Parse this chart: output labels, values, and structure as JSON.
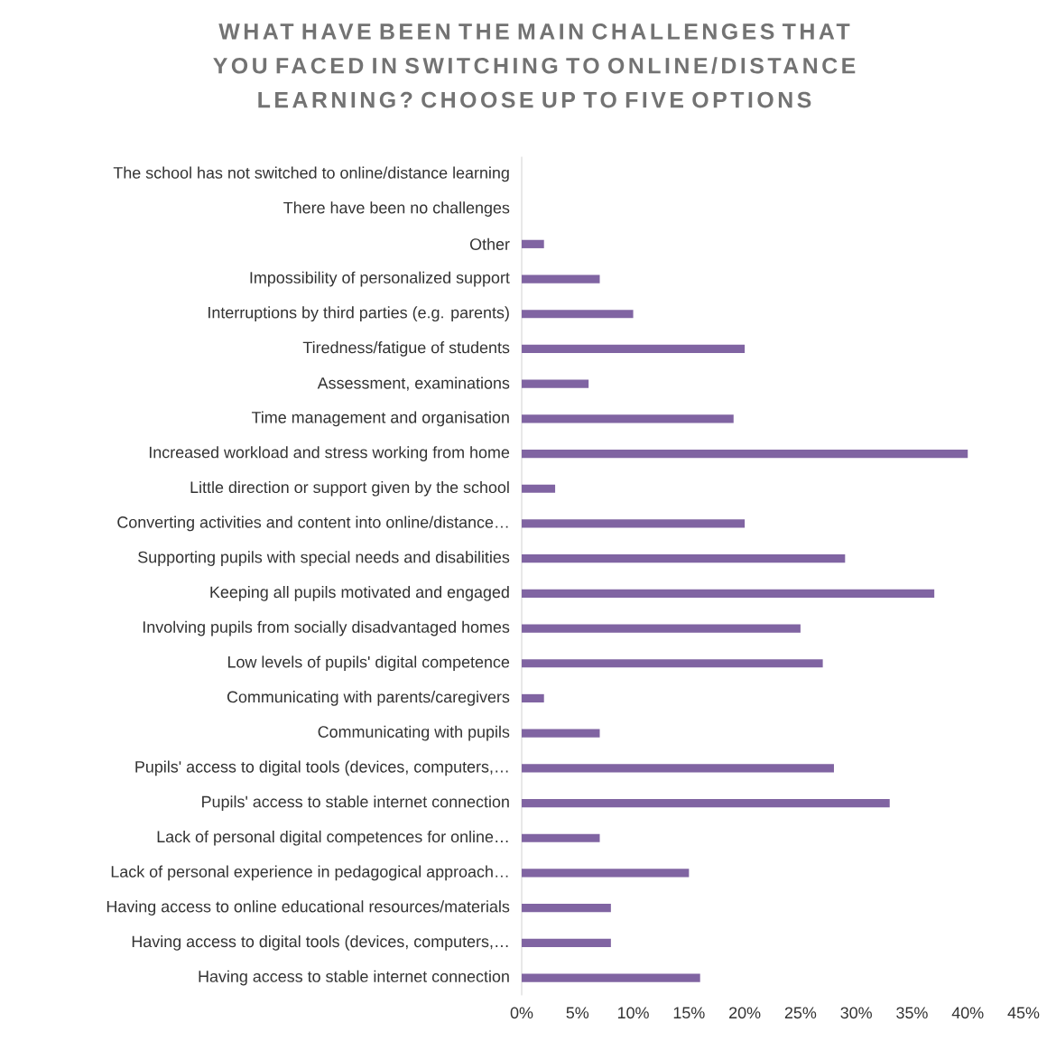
{
  "chart_data": {
    "type": "bar",
    "orientation": "horizontal",
    "title": "WHAT HAVE BEEN THE MAIN CHALLENGES THAT YOU FACED IN SWITCHING TO ONLINE/DISTANCE LEARNING? CHOOSE UP TO FIVE OPTIONS",
    "categories": [
      "The school has not switched to online/distance learning",
      "There have been no challenges",
      "Other",
      "Impossibility of personalized support",
      "Interruptions by third parties (e.g. parents)",
      "Tiredness/fatigue of students",
      "Assessment, examinations",
      "Time management and organisation",
      "Increased workload and stress working from home",
      "Little direction or support given by the school",
      "Converting activities and content into online/distance…",
      "Supporting pupils with special needs and disabilities",
      "Keeping all pupils motivated and engaged",
      "Involving pupils from socially disadvantaged homes",
      "Low levels of pupils' digital competence",
      "Communicating with parents/caregivers",
      "Communicating with pupils",
      "Pupils' access to digital tools (devices, computers,…",
      "Pupils' access to stable internet connection",
      "Lack of personal digital competences for online…",
      "Lack of personal experience in pedagogical approach…",
      "Having access to online educational resources/materials",
      "Having access to digital tools (devices, computers,…",
      "Having access to stable internet connection"
    ],
    "values": [
      0,
      0,
      2,
      7,
      10,
      20,
      6,
      19,
      40,
      3,
      20,
      29,
      37,
      25,
      27,
      2,
      7,
      28,
      33,
      7,
      15,
      8,
      8,
      16
    ],
    "color": "#8064a2",
    "xlim": [
      0,
      45
    ],
    "xticks": [
      {
        "value": 0,
        "label": "0%"
      },
      {
        "value": 5,
        "label": "5%"
      },
      {
        "value": 10,
        "label": "10%"
      },
      {
        "value": 15,
        "label": "15%"
      },
      {
        "value": 20,
        "label": "20%"
      },
      {
        "value": 25,
        "label": "25%"
      },
      {
        "value": 30,
        "label": "30%"
      },
      {
        "value": 35,
        "label": "35%"
      },
      {
        "value": 40,
        "label": "40%"
      },
      {
        "value": 45,
        "label": "45%"
      }
    ]
  }
}
